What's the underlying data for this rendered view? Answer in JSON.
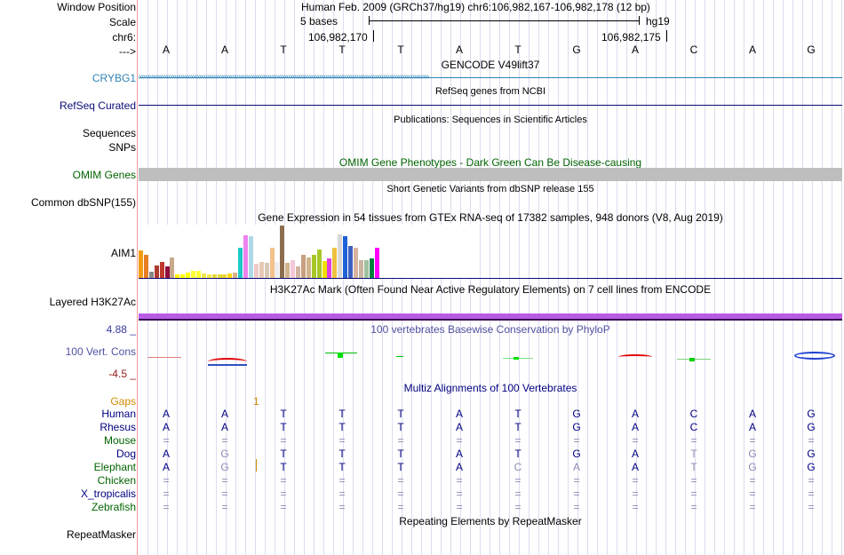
{
  "ruler": {
    "window_position_label": "Window Position",
    "window_position_value": "Human Feb. 2009 (GRCh37/hg19)   chr6:106,982,167-106,982,178 (12 bp)",
    "scale_label": "Scale",
    "scale_value": "5 bases",
    "scale_db": "hg19",
    "chrom_label": "chr6:",
    "coord_1": "106,982,170",
    "coord_2": "106,982,175",
    "strand_label": "--->",
    "bases": [
      "A",
      "A",
      "T",
      "T",
      "T",
      "A",
      "T",
      "G",
      "A",
      "C",
      "A",
      "G"
    ]
  },
  "tracks": {
    "gencode_title": "GENCODE V49lift37",
    "crybg1_label": "CRYBG1",
    "refseq_title": "RefSeq genes from NCBI",
    "refseq_label": "RefSeq Curated",
    "pubs_title": "Publications: Sequences in Scientific Articles",
    "sequences_label": "Sequences",
    "snps_label": "SNPs",
    "omim_title": "OMIM Gene Phenotypes - Dark Green Can Be Disease-causing",
    "omim_label": "OMIM Genes",
    "dbsnp_title": "Short Genetic Variants from dbSNP release 155",
    "dbsnp_label": "Common dbSNP(155)",
    "gtex_title": "Gene Expression in 54 tissues from GTEx RNA-seq of 17382 samples, 948 donors (V8, Aug 2019)",
    "gtex_label": "AIM1",
    "h3k27_title": "H3K27Ac Mark (Often Found Near Active Regulatory Elements) on 7 cell lines from ENCODE",
    "h3k27_label": "Layered H3K27Ac",
    "phylop_title": "100 vertebrates Basewise Conservation by PhyloP",
    "phylop_label": "100 Vert. Cons",
    "phylop_max": "4.88 _",
    "phylop_min": "-4.5 _",
    "multiz_title": "Multiz Alignments of 100 Vertebrates",
    "gaps_label": "Gaps",
    "gap_marker": "1",
    "rmsk_title": "Repeating Elements by RepeatMasker",
    "rmsk_label": "RepeatMasker"
  },
  "gtex_values": [
    0.52,
    0.44,
    0.12,
    0.24,
    0.3,
    0.22,
    0.38,
    0.06,
    0.06,
    0.1,
    0.14,
    0.14,
    0.08,
    0.06,
    0.06,
    0.06,
    0.06,
    0.08,
    0.1,
    0.56,
    0.8,
    0.78,
    0.26,
    0.3,
    0.28,
    0.56,
    0.3,
    0.98,
    0.28,
    0.34,
    0.22,
    0.44,
    0.38,
    0.44,
    0.54,
    0.32,
    0.36,
    0.56,
    0.82,
    0.78,
    0.6,
    0.56,
    0.34,
    0.34,
    0.36,
    0.56
  ],
  "gtex_colors": [
    "#f39c12",
    "#e67e22",
    "#888",
    "#b03a2e",
    "#c0392b",
    "#8e0e3e",
    "#c8a98a",
    "#fff000",
    "#ff0",
    "#ff0",
    "#ff3",
    "#ff3",
    "#f3e54a",
    "#f5e94a",
    "#e8d73a",
    "#e8d73a",
    "#e8d73a",
    "#ffd700",
    "#d8b48c",
    "#1ec8c8",
    "#ee82ee",
    "#add8e6",
    "#f0c8c8",
    "#e6c8b4",
    "#d8c8b4",
    "#f4c08c",
    "#eee",
    "#8c6e4e",
    "#d2b48c",
    "#f4c8d8",
    "#d2b4a0",
    "#c8a080",
    "#d2b48c",
    "#a8c828",
    "#a8c828",
    "#f0e000",
    "#e040e0",
    "#f0c040",
    "#d8d8d8",
    "#1e60d8",
    "#4060c0",
    "#d8b4a0",
    "#c8b4a0",
    "#a0c0a0",
    "#008040",
    "#ff00ff"
  ],
  "alignment": {
    "species": [
      "Human",
      "Rhesus",
      "Mouse",
      "Dog",
      "Elephant",
      "Chicken",
      "X_tropicalis",
      "Zebrafish"
    ],
    "species_colors": [
      "#000080",
      "#000080",
      "#006400",
      "#000080",
      "#006400",
      "#006400",
      "#000080",
      "#006400"
    ],
    "rows": [
      [
        "A",
        "A",
        "T",
        "T",
        "T",
        "A",
        "T",
        "G",
        "A",
        "C",
        "A",
        "G"
      ],
      [
        "A",
        "A",
        "T",
        "T",
        "T",
        "A",
        "T",
        "G",
        "A",
        "C",
        "A",
        "G"
      ],
      [
        "=",
        "=",
        "=",
        "=",
        "=",
        "=",
        "=",
        "=",
        "=",
        "=",
        "=",
        "="
      ],
      [
        "A",
        "G",
        "T",
        "T",
        "T",
        "A",
        "T",
        "G",
        "A",
        "T",
        "G",
        "G"
      ],
      [
        "A",
        "G",
        "T",
        "T",
        "T",
        "A",
        "C",
        "A",
        "A",
        "T",
        "G",
        "G"
      ],
      [
        "=",
        "=",
        "=",
        "=",
        "=",
        "=",
        "=",
        "=",
        "=",
        "=",
        "=",
        "="
      ],
      [
        "=",
        "=",
        "=",
        "=",
        "=",
        "=",
        "=",
        "=",
        "=",
        "=",
        "=",
        "="
      ],
      [
        "=",
        "=",
        "=",
        "=",
        "=",
        "=",
        "=",
        "=",
        "=",
        "=",
        "=",
        "="
      ]
    ],
    "dim_cells": [
      [
        2,
        "all"
      ],
      [
        3,
        1
      ],
      [
        3,
        9
      ],
      [
        3,
        10
      ],
      [
        4,
        1
      ],
      [
        4,
        6
      ],
      [
        4,
        7
      ],
      [
        4,
        9
      ],
      [
        4,
        10
      ],
      [
        5,
        "all"
      ],
      [
        6,
        "all"
      ],
      [
        7,
        "all"
      ]
    ]
  },
  "colors": {
    "crybg1": "#3083b5",
    "refseq": "#0c0c78",
    "omim_label": "#006400",
    "omim_bar": "#bebebe",
    "h3k27_band": "#b85ce6",
    "phylop": "#5050a0",
    "phylop_max": "#3a3a9e",
    "phylop_min": "#8e1a1a",
    "gaps": "#d38a00",
    "multiz": "#000080"
  }
}
